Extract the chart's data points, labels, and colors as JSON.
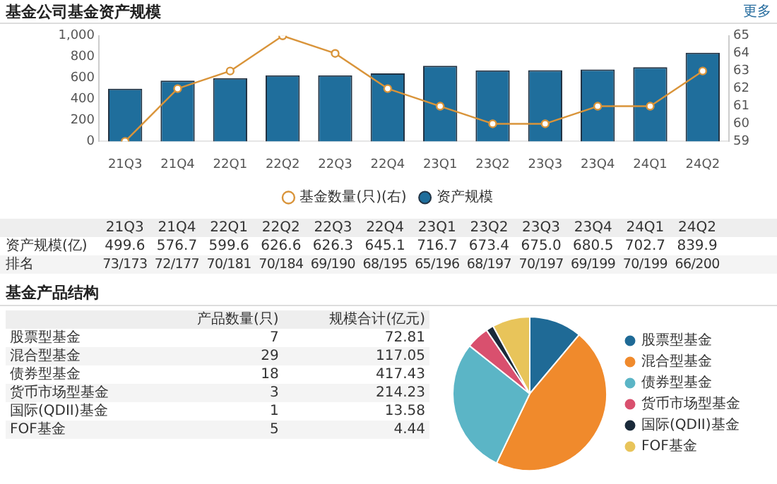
{
  "chart_data": [
    {
      "type": "bar",
      "title": "基金公司基金资产规模",
      "categories": [
        "21Q3",
        "21Q4",
        "22Q1",
        "22Q2",
        "22Q3",
        "22Q4",
        "23Q1",
        "23Q2",
        "23Q3",
        "23Q4",
        "24Q1",
        "24Q2"
      ],
      "series": [
        {
          "name": "资产规模",
          "type": "bar",
          "color": "#1f6e9c",
          "values": [
            499.6,
            576.7,
            599.6,
            626.6,
            626.3,
            645.1,
            716.7,
            673.4,
            675.0,
            680.5,
            702.7,
            839.9
          ],
          "value_labels": [
            "499.6",
            "576.7",
            "599.6",
            "626.6",
            "626.3",
            "645.1",
            "716.7",
            "673.4",
            "675.0",
            "680.5",
            "702.7",
            "839.9"
          ]
        },
        {
          "name": "基金数量(只)(右)",
          "type": "line",
          "axis": "y2",
          "color": "#d9943a",
          "values": [
            59,
            62,
            63,
            65,
            64,
            62,
            61,
            60,
            60,
            61,
            61,
            63
          ]
        }
      ],
      "marker": "circle",
      "ylim": [
        0,
        1000
      ],
      "yticks": [
        0,
        200,
        400,
        600,
        800,
        {
          "value": 1000,
          "label": "1,000"
        }
      ],
      "y2lim": [
        59,
        65
      ],
      "y2ticks": [
        59,
        60,
        61,
        62,
        63,
        64,
        65
      ],
      "legend": "bottom",
      "annotations": [
        "更多",
        "资产规模(亿)",
        "排名",
        "73/173",
        "72/177",
        "70/181",
        "70/184",
        "69/190",
        "68/195",
        "65/196",
        "68/197",
        "70/197",
        "69/199",
        "70/199",
        "66/200"
      ]
    },
    {
      "type": "pie",
      "categories": [
        "股票型基金",
        "混合型基金",
        "债券型基金",
        "货币市场型基金",
        "国际(QDII)基金",
        "FOF基金"
      ],
      "values": [
        11.1,
        46.0,
        28.6,
        4.8,
        1.6,
        7.9
      ],
      "colors": [
        "#1f6a96",
        "#f08a2c",
        "#5bb5c6",
        "#d9506e",
        "#1a2a3a",
        "#e8c45a"
      ],
      "legend": "right",
      "annotations": [
        "基金产品结构",
        "产品数量(只)",
        "规模合计(亿元)",
        "7",
        "29",
        "18",
        "3",
        "1",
        "5",
        {
          "text": "72.81",
          "x": "股票型基金"
        },
        {
          "text": "117.05",
          "x": "混合型基金"
        },
        {
          "text": "417.43",
          "x": "债券型基金"
        },
        {
          "text": "214.23",
          "x": "货币市场型基金"
        },
        {
          "text": "13.58",
          "x": "国际(QDII)基金"
        },
        {
          "text": "4.44",
          "x": "FOF基金"
        }
      ]
    }
  ]
}
